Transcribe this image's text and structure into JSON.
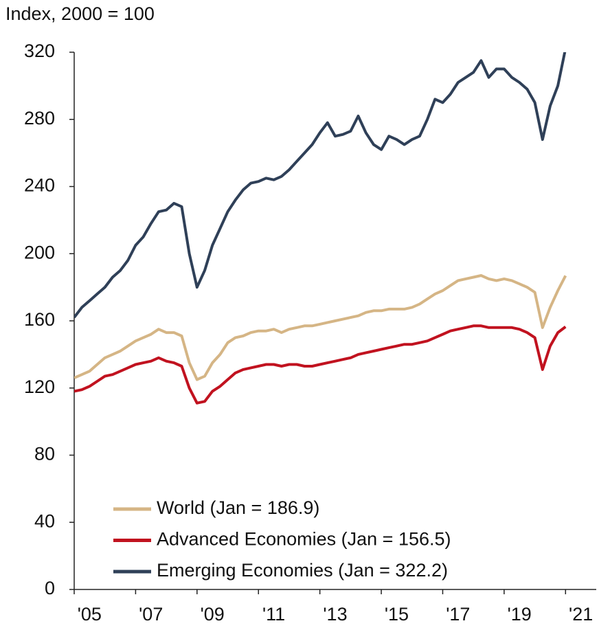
{
  "chart_data": {
    "type": "line",
    "title": "Index, 2000 = 100",
    "x": [
      2005,
      2005.25,
      2005.5,
      2005.75,
      2006,
      2006.25,
      2006.5,
      2006.75,
      2007,
      2007.25,
      2007.5,
      2007.75,
      2008,
      2008.25,
      2008.5,
      2008.75,
      2009,
      2009.25,
      2009.5,
      2009.75,
      2010,
      2010.25,
      2010.5,
      2010.75,
      2011,
      2011.25,
      2011.5,
      2011.75,
      2012,
      2012.25,
      2012.5,
      2012.75,
      2013,
      2013.25,
      2013.5,
      2013.75,
      2014,
      2014.25,
      2014.5,
      2014.75,
      2015,
      2015.25,
      2015.5,
      2015.75,
      2016,
      2016.25,
      2016.5,
      2016.75,
      2017,
      2017.25,
      2017.5,
      2017.75,
      2018,
      2018.25,
      2018.5,
      2018.75,
      2019,
      2019.25,
      2019.5,
      2019.75,
      2020,
      2020.25,
      2020.5,
      2020.75,
      2021
    ],
    "series": [
      {
        "name": "World (Jan = 186.9)",
        "color": "#d5b585",
        "values": [
          126,
          128,
          130,
          134,
          138,
          140,
          142,
          145,
          148,
          150,
          152,
          155,
          153,
          153,
          151,
          135,
          125,
          127,
          135,
          140,
          147,
          150,
          151,
          153,
          154,
          154,
          155,
          153,
          155,
          156,
          157,
          157,
          158,
          159,
          160,
          161,
          162,
          163,
          165,
          166,
          166,
          167,
          167,
          167,
          168,
          170,
          173,
          176,
          178,
          181,
          184,
          185,
          186,
          187,
          185,
          184,
          185,
          184,
          182,
          180,
          177,
          156,
          168,
          178,
          186.9
        ]
      },
      {
        "name": "Advanced Economies (Jan = 156.5)",
        "color": "#c1121f",
        "values": [
          118,
          119,
          121,
          124,
          127,
          128,
          130,
          132,
          134,
          135,
          136,
          138,
          136,
          135,
          133,
          120,
          111,
          112,
          118,
          121,
          125,
          129,
          131,
          132,
          133,
          134,
          134,
          133,
          134,
          134,
          133,
          133,
          134,
          135,
          136,
          137,
          138,
          140,
          141,
          142,
          143,
          144,
          145,
          146,
          146,
          147,
          148,
          150,
          152,
          154,
          155,
          156,
          157,
          157,
          156,
          156,
          156,
          156,
          155,
          153,
          150,
          131,
          145,
          153,
          156.5
        ]
      },
      {
        "name": "Emerging Economies (Jan = 322.2)",
        "color": "#2f4058",
        "values": [
          162,
          168,
          172,
          176,
          180,
          186,
          190,
          196,
          205,
          210,
          218,
          225,
          226,
          230,
          228,
          200,
          180,
          190,
          205,
          215,
          225,
          232,
          238,
          242,
          243,
          245,
          244,
          246,
          250,
          255,
          260,
          265,
          272,
          278,
          270,
          271,
          273,
          282,
          272,
          265,
          262,
          270,
          268,
          265,
          268,
          270,
          280,
          292,
          290,
          295,
          302,
          305,
          308,
          315,
          305,
          310,
          310,
          305,
          302,
          298,
          290,
          268,
          288,
          300,
          322.2
        ]
      }
    ],
    "xlim": [
      2005,
      2022
    ],
    "xticks": [
      {
        "value": 2005,
        "label": "'05"
      },
      {
        "value": 2007,
        "label": "'07"
      },
      {
        "value": 2009,
        "label": "'09"
      },
      {
        "value": 2011,
        "label": "'11"
      },
      {
        "value": 2013,
        "label": "'13"
      },
      {
        "value": 2015,
        "label": "'15"
      },
      {
        "value": 2017,
        "label": "'17"
      },
      {
        "value": 2019,
        "label": "'19"
      },
      {
        "value": 2021,
        "label": "'21"
      }
    ],
    "ylim": [
      0,
      320
    ],
    "yticks": [
      0,
      40,
      80,
      120,
      160,
      200,
      240,
      280,
      320
    ]
  }
}
